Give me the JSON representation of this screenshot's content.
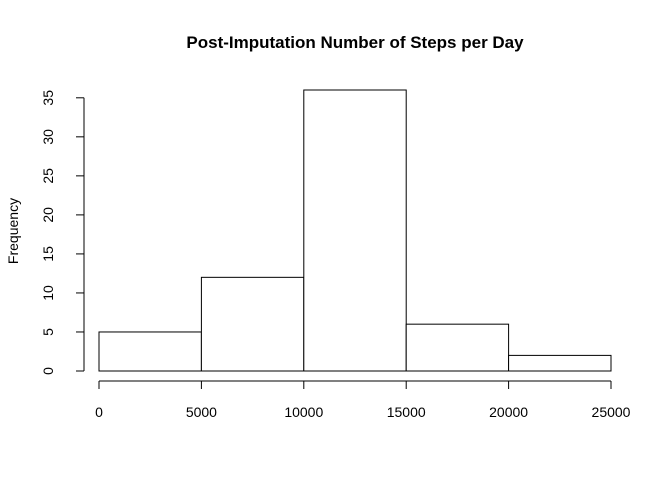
{
  "chart_data": {
    "type": "bar",
    "title": "Post-Imputation Number of Steps per Day",
    "xlabel": "",
    "ylabel": "Frequency",
    "bins": [
      {
        "start": 0,
        "end": 5000,
        "count": 5
      },
      {
        "start": 5000,
        "end": 10000,
        "count": 12
      },
      {
        "start": 10000,
        "end": 15000,
        "count": 36
      },
      {
        "start": 15000,
        "end": 20000,
        "count": 6
      },
      {
        "start": 20000,
        "end": 25000,
        "count": 2
      }
    ],
    "x_ticks": [
      0,
      5000,
      10000,
      15000,
      20000,
      25000
    ],
    "y_ticks": [
      0,
      5,
      10,
      15,
      20,
      25,
      30,
      35
    ],
    "xlim": [
      0,
      25000
    ],
    "ylim": [
      0,
      36
    ],
    "grid": false,
    "legend": "none",
    "colors": {
      "bar_fill": "#ffffff",
      "bar_stroke": "#000000",
      "background": "#ffffff"
    }
  }
}
